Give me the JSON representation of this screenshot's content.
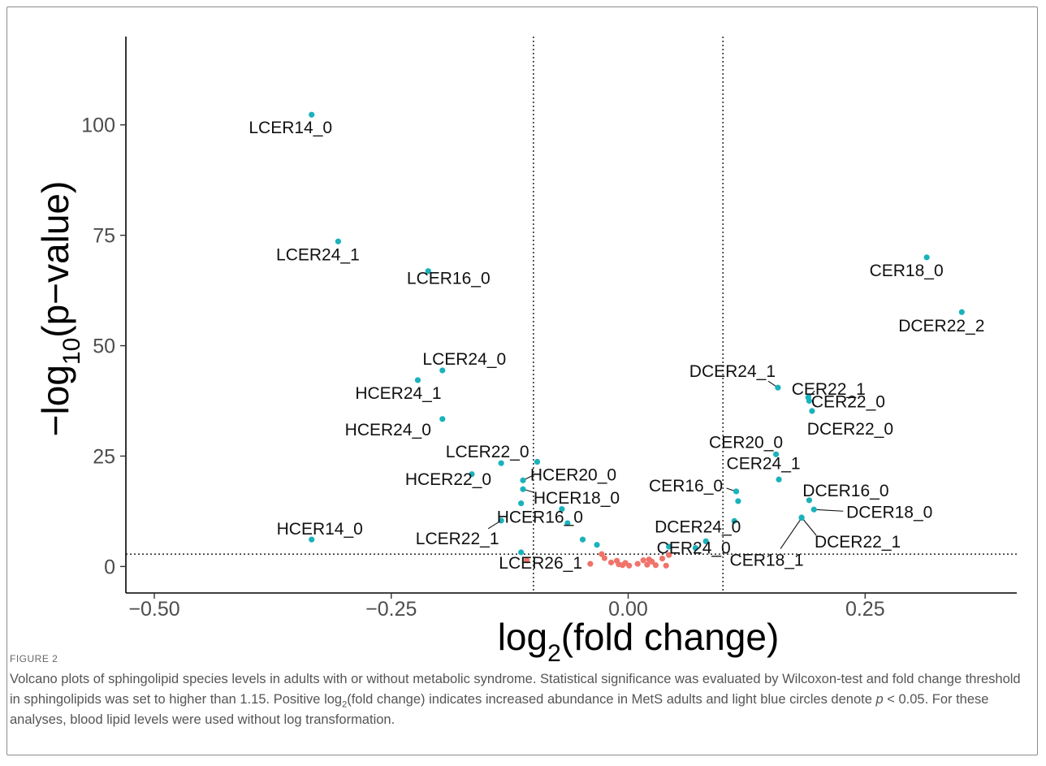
{
  "figure": {
    "label": "FIGURE 2",
    "caption_parts": [
      "Volcano plots of sphingolipid species levels in adults with or without metabolic syndrome. Statistical significance was evaluated by Wilcoxon-test and fold change threshold in sphingolipids was set to higher than 1.15. Positive log",
      "2",
      "(fold change) indicates increased abundance in MetS adults and light blue circles denote ",
      "p",
      " < 0.05. For these analyses, blood lipid levels were used without log transformation."
    ]
  },
  "chart_data": {
    "type": "scatter",
    "title": "",
    "xlabel": {
      "main": "log",
      "sub": "2",
      "rest": "(fold change)"
    },
    "ylabel": {
      "main": "−log",
      "sub": "10",
      "rest": "(p−value)"
    },
    "xlim": [
      -0.53,
      0.41
    ],
    "ylim": [
      -6,
      120
    ],
    "x_ticks": [
      -0.5,
      -0.25,
      0.0,
      0.25
    ],
    "x_tick_labels": [
      "−0.50",
      "−0.25",
      "0.00",
      "0.25"
    ],
    "y_ticks": [
      0,
      25,
      50,
      75,
      100
    ],
    "y_tick_labels": [
      "0",
      "25",
      "50",
      "75",
      "100"
    ],
    "thresholds": {
      "vertical": [
        -0.1,
        0.1
      ],
      "horizontal": 2.8
    },
    "grid": false,
    "colors": {
      "significant": "#1ab2bc",
      "not_significant": "#f0736a",
      "axis": "#000000",
      "label": "#111111"
    },
    "points": [
      {
        "x": -0.334,
        "y": 102.3,
        "label": "LCER14_0",
        "sig": true
      },
      {
        "x": -0.306,
        "y": 73.6,
        "label": "LCER24_1",
        "sig": true
      },
      {
        "x": -0.211,
        "y": 66.9,
        "label": "LCER16_0",
        "sig": true
      },
      {
        "x": 0.315,
        "y": 70.0,
        "label": "CER18_0",
        "sig": true
      },
      {
        "x": 0.352,
        "y": 57.6,
        "label": "DCER22_2",
        "sig": true
      },
      {
        "x": -0.196,
        "y": 44.4,
        "label": "LCER24_0",
        "sig": true
      },
      {
        "x": -0.222,
        "y": 42.2,
        "label": "HCER24_1",
        "sig": true
      },
      {
        "x": -0.196,
        "y": 33.4,
        "label": "HCER24_0",
        "sig": true
      },
      {
        "x": 0.158,
        "y": 40.5,
        "label": "DCER24_1",
        "sig": true
      },
      {
        "x": 0.19,
        "y": 38.3,
        "label": "CER22_1",
        "sig": true
      },
      {
        "x": 0.191,
        "y": 37.5,
        "label": "CER22_0",
        "sig": true
      },
      {
        "x": 0.194,
        "y": 35.2,
        "label": "DCER22_0",
        "sig": true
      },
      {
        "x": -0.134,
        "y": 23.4,
        "label": "LCER22_0",
        "sig": true
      },
      {
        "x": -0.165,
        "y": 20.9,
        "label": "HCER22_0",
        "sig": true
      },
      {
        "x": -0.111,
        "y": 19.5,
        "label": "HCER20_0",
        "sig": true
      },
      {
        "x": -0.111,
        "y": 17.5,
        "label": "HCER18_0",
        "sig": true
      },
      {
        "x": -0.07,
        "y": 13.0,
        "label": "HCER16_0",
        "sig": true
      },
      {
        "x": -0.134,
        "y": 10.4,
        "label": "LCER22_1",
        "sig": true
      },
      {
        "x": -0.334,
        "y": 6.1,
        "label": "HCER14_0",
        "sig": true
      },
      {
        "x": -0.113,
        "y": 3.2,
        "label": "LCER26_1",
        "sig": true
      },
      {
        "x": 0.156,
        "y": 25.4,
        "label": "CER20_0",
        "sig": true
      },
      {
        "x": 0.159,
        "y": 19.7,
        "label": "CER24_1",
        "sig": true
      },
      {
        "x": 0.114,
        "y": 17.0,
        "label": "CER16_0",
        "sig": true
      },
      {
        "x": 0.191,
        "y": 15.0,
        "label": "DCER16_0",
        "sig": true
      },
      {
        "x": 0.112,
        "y": 10.3,
        "label": "DCER24_0",
        "sig": true
      },
      {
        "x": 0.196,
        "y": 12.9,
        "label": "DCER18_0",
        "sig": true
      },
      {
        "x": 0.183,
        "y": 11.1,
        "label": "DCER22_1",
        "sig": true
      },
      {
        "x": 0.082,
        "y": 5.7,
        "label": "CER24_0",
        "sig": true
      },
      {
        "x": 0.183,
        "y": 11.0,
        "label": "CER18_1",
        "sig": true
      },
      {
        "x": -0.096,
        "y": 23.7,
        "sig": true
      },
      {
        "x": -0.113,
        "y": 14.3,
        "sig": true
      },
      {
        "x": -0.064,
        "y": 9.8,
        "sig": true
      },
      {
        "x": -0.048,
        "y": 6.1,
        "sig": true
      },
      {
        "x": -0.033,
        "y": 4.9,
        "sig": true
      },
      {
        "x": 0.043,
        "y": 4.5,
        "sig": true
      },
      {
        "x": 0.071,
        "y": 4.2,
        "sig": true
      },
      {
        "x": 0.116,
        "y": 14.8,
        "sig": true
      },
      {
        "x": -0.107,
        "y": 1.4,
        "sig": false
      },
      {
        "x": -0.04,
        "y": 0.6,
        "sig": false
      },
      {
        "x": -0.028,
        "y": 2.8,
        "sig": false
      },
      {
        "x": -0.025,
        "y": 1.9,
        "sig": false
      },
      {
        "x": -0.018,
        "y": 0.9,
        "sig": false
      },
      {
        "x": -0.012,
        "y": 1.3,
        "sig": false
      },
      {
        "x": -0.01,
        "y": 0.5,
        "sig": false
      },
      {
        "x": -0.006,
        "y": 0.3,
        "sig": false
      },
      {
        "x": -0.003,
        "y": 0.8,
        "sig": false
      },
      {
        "x": 0.001,
        "y": 0.2,
        "sig": false
      },
      {
        "x": 0.01,
        "y": 0.6,
        "sig": false
      },
      {
        "x": 0.016,
        "y": 1.4,
        "sig": false
      },
      {
        "x": 0.02,
        "y": 0.4,
        "sig": false
      },
      {
        "x": 0.022,
        "y": 1.6,
        "sig": false
      },
      {
        "x": 0.025,
        "y": 1.1,
        "sig": false
      },
      {
        "x": 0.029,
        "y": 0.3,
        "sig": false
      },
      {
        "x": 0.036,
        "y": 1.8,
        "sig": false
      },
      {
        "x": 0.04,
        "y": 0.2,
        "sig": false
      },
      {
        "x": 0.043,
        "y": 2.6,
        "sig": false
      }
    ]
  }
}
